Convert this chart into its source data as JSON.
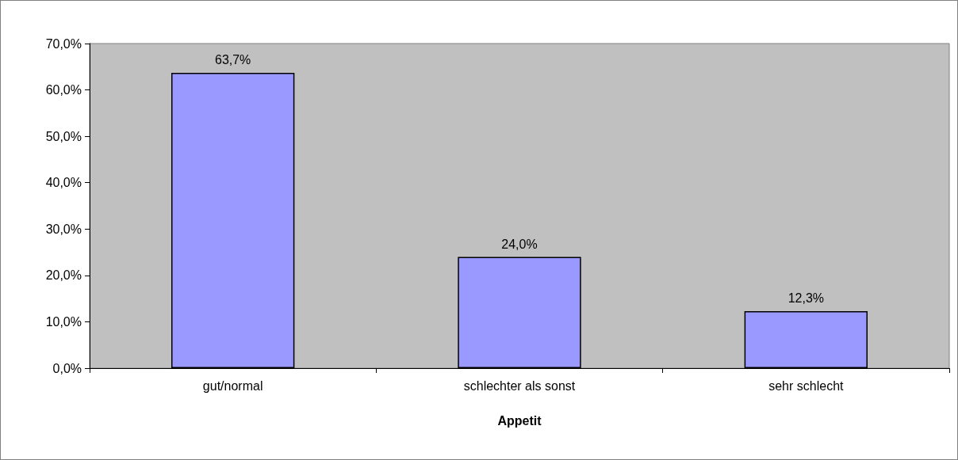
{
  "chart_data": {
    "type": "bar",
    "xlabel": "Appetit",
    "categories": [
      "gut/normal",
      "schlechter als sonst",
      "sehr schlecht"
    ],
    "values": [
      63.7,
      24.0,
      12.3
    ],
    "color": "#9999ff",
    "value_labels": [
      "63,7%",
      "24,0%",
      "12,3%"
    ],
    "ylim": [
      0,
      70
    ],
    "yticks": [
      {
        "value": 0,
        "label": "0,0%"
      },
      {
        "value": 10,
        "label": "10,0%"
      },
      {
        "value": 20,
        "label": "20,0%"
      },
      {
        "value": 30,
        "label": "30,0%"
      },
      {
        "value": 40,
        "label": "40,0%"
      },
      {
        "value": 50,
        "label": "50,0%"
      },
      {
        "value": 60,
        "label": "60,0%"
      },
      {
        "value": 70,
        "label": "70,0%"
      }
    ],
    "grid": false
  }
}
